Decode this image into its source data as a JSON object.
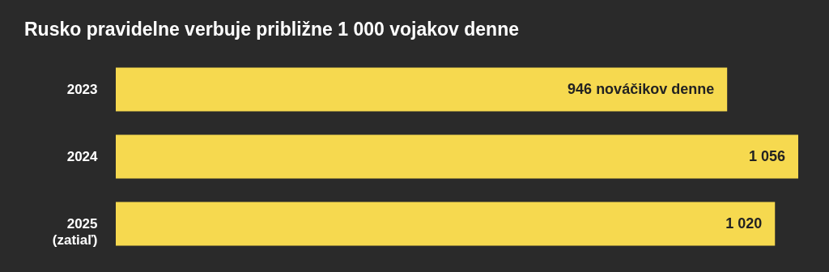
{
  "chart_data": {
    "type": "bar",
    "orientation": "horizontal",
    "title": "Rusko pravidelne verbuje približne 1 000 vojakov denne",
    "categories": [
      "2023",
      "2024",
      "2025 (zatiaľ)"
    ],
    "values": [
      946,
      1056,
      1020
    ],
    "value_labels": [
      "946 nováčikov denne",
      "1 056",
      "1 020"
    ],
    "color": "#f6d94f"
  }
}
